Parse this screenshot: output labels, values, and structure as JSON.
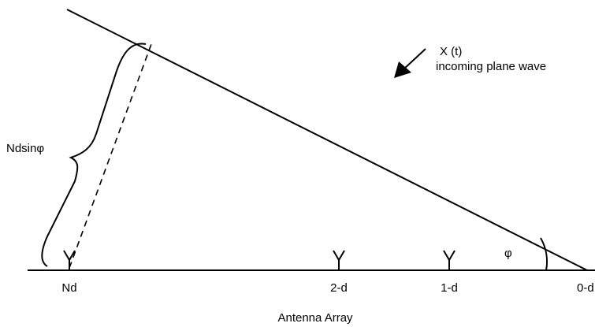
{
  "wave": {
    "signal": "X (t)",
    "description": "incoming plane wave"
  },
  "path_difference": "Ndsinφ",
  "angle": "φ",
  "antennas": [
    "Nd",
    "2-d",
    "1-d",
    "0-d"
  ],
  "array_label": "Antenna Array"
}
